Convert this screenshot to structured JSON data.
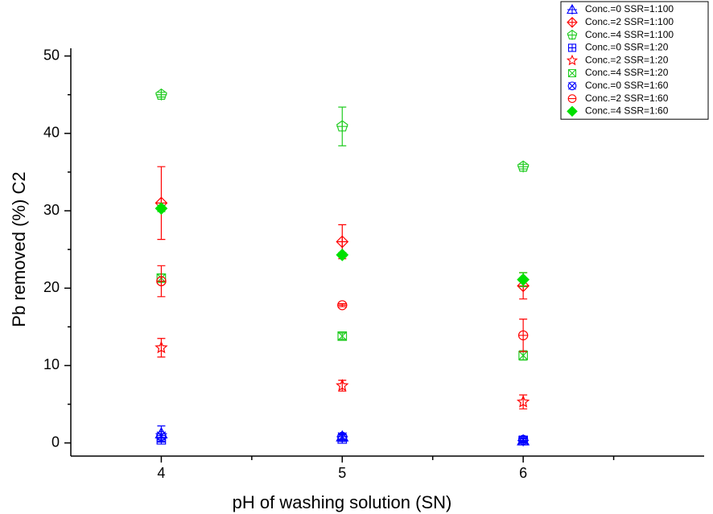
{
  "chart_data": {
    "type": "scatter",
    "x_label": "pH of washing solution (SN)",
    "y_label": "Pb removed (%) C2",
    "x": [
      4,
      5,
      6
    ],
    "xlim": [
      3.5,
      7.0
    ],
    "xticks": [
      4,
      5,
      6
    ],
    "xminor_ticks": [
      4.5,
      5.5,
      6.5
    ],
    "ylim": [
      -1.7,
      51
    ],
    "yticks": [
      0,
      10,
      20,
      30,
      40,
      50
    ],
    "yminor_ticks": [
      5,
      15,
      25,
      35,
      45
    ],
    "legend": "top-right",
    "series": [
      {
        "name": "Conc.=0 SSR=1:100",
        "color": "#0000ff",
        "marker": "triangle-plus",
        "values": [
          1.2,
          0.8,
          0.3
        ],
        "errors": [
          1.0,
          0.4,
          0.3
        ]
      },
      {
        "name": "Conc.=2 SSR=1:100",
        "color": "#ff0000",
        "marker": "diamond-plus",
        "values": [
          31,
          26,
          20.3
        ],
        "errors": [
          4.7,
          2.2,
          1.7
        ]
      },
      {
        "name": "Conc.=4 SSR=1:100",
        "color": "#22cc22",
        "marker": "pentagon-plus",
        "values": [
          45,
          40.9,
          35.7
        ],
        "errors": [
          0.3,
          2.5,
          0.3
        ]
      },
      {
        "name": "Conc.=0 SSR=1:20",
        "color": "#0000ff",
        "marker": "square-plus",
        "values": [
          0.4,
          0.5,
          0.3
        ],
        "errors": [
          0.3,
          0.3,
          0.2
        ]
      },
      {
        "name": "Conc.=2 SSR=1:20",
        "color": "#ff0000",
        "marker": "star",
        "values": [
          12.3,
          7.4,
          5.3
        ],
        "errors": [
          1.2,
          0.7,
          0.9
        ]
      },
      {
        "name": "Conc.=4 SSR=1:20",
        "color": "#22cc22",
        "marker": "square-x",
        "values": [
          21.3,
          13.8,
          11.3
        ],
        "errors": [
          0.5,
          0.4,
          0.6
        ]
      },
      {
        "name": "Conc.=0 SSR=1:60",
        "color": "#0000ff",
        "marker": "circle-x",
        "values": [
          0.9,
          0.8,
          0.4
        ],
        "errors": [
          0.3,
          0.3,
          0.2
        ]
      },
      {
        "name": "Conc.=2 SSR=1:60",
        "color": "#ff0000",
        "marker": "circle-minus",
        "values": [
          20.9,
          17.8,
          13.9
        ],
        "errors": [
          2.0,
          0.2,
          2.1
        ]
      },
      {
        "name": "Conc.=4 SSR=1:60",
        "color": "#00e000",
        "marker": "diamond-filled",
        "values": [
          30.3,
          24.3,
          21.1
        ],
        "errors": [
          0.4,
          0.3,
          0.9
        ]
      }
    ]
  }
}
